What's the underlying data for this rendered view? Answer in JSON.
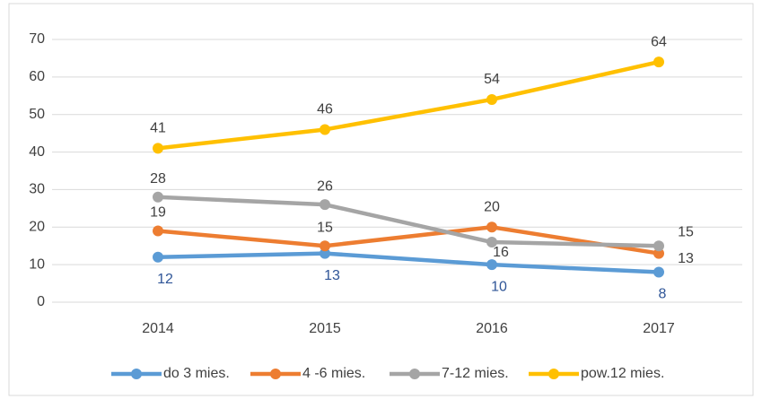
{
  "chart_data": {
    "type": "line",
    "categories": [
      "2014",
      "2015",
      "2016",
      "2017"
    ],
    "series": [
      {
        "name": "do 3 mies.",
        "color": "#5b9bd5",
        "values": [
          12,
          13,
          10,
          8
        ]
      },
      {
        "name": "4 -6 mies.",
        "color": "#ed7d31",
        "values": [
          19,
          15,
          20,
          13
        ]
      },
      {
        "name": "7-12 mies.",
        "color": "#a5a5a5",
        "values": [
          28,
          26,
          16,
          15
        ]
      },
      {
        "name": "pow.12 mies.",
        "color": "#ffc000",
        "values": [
          41,
          46,
          54,
          64
        ]
      }
    ],
    "ylim": [
      0,
      70
    ],
    "yticks": [
      0,
      10,
      20,
      30,
      40,
      50,
      60,
      70
    ],
    "grid": true,
    "legend": "bottom"
  }
}
